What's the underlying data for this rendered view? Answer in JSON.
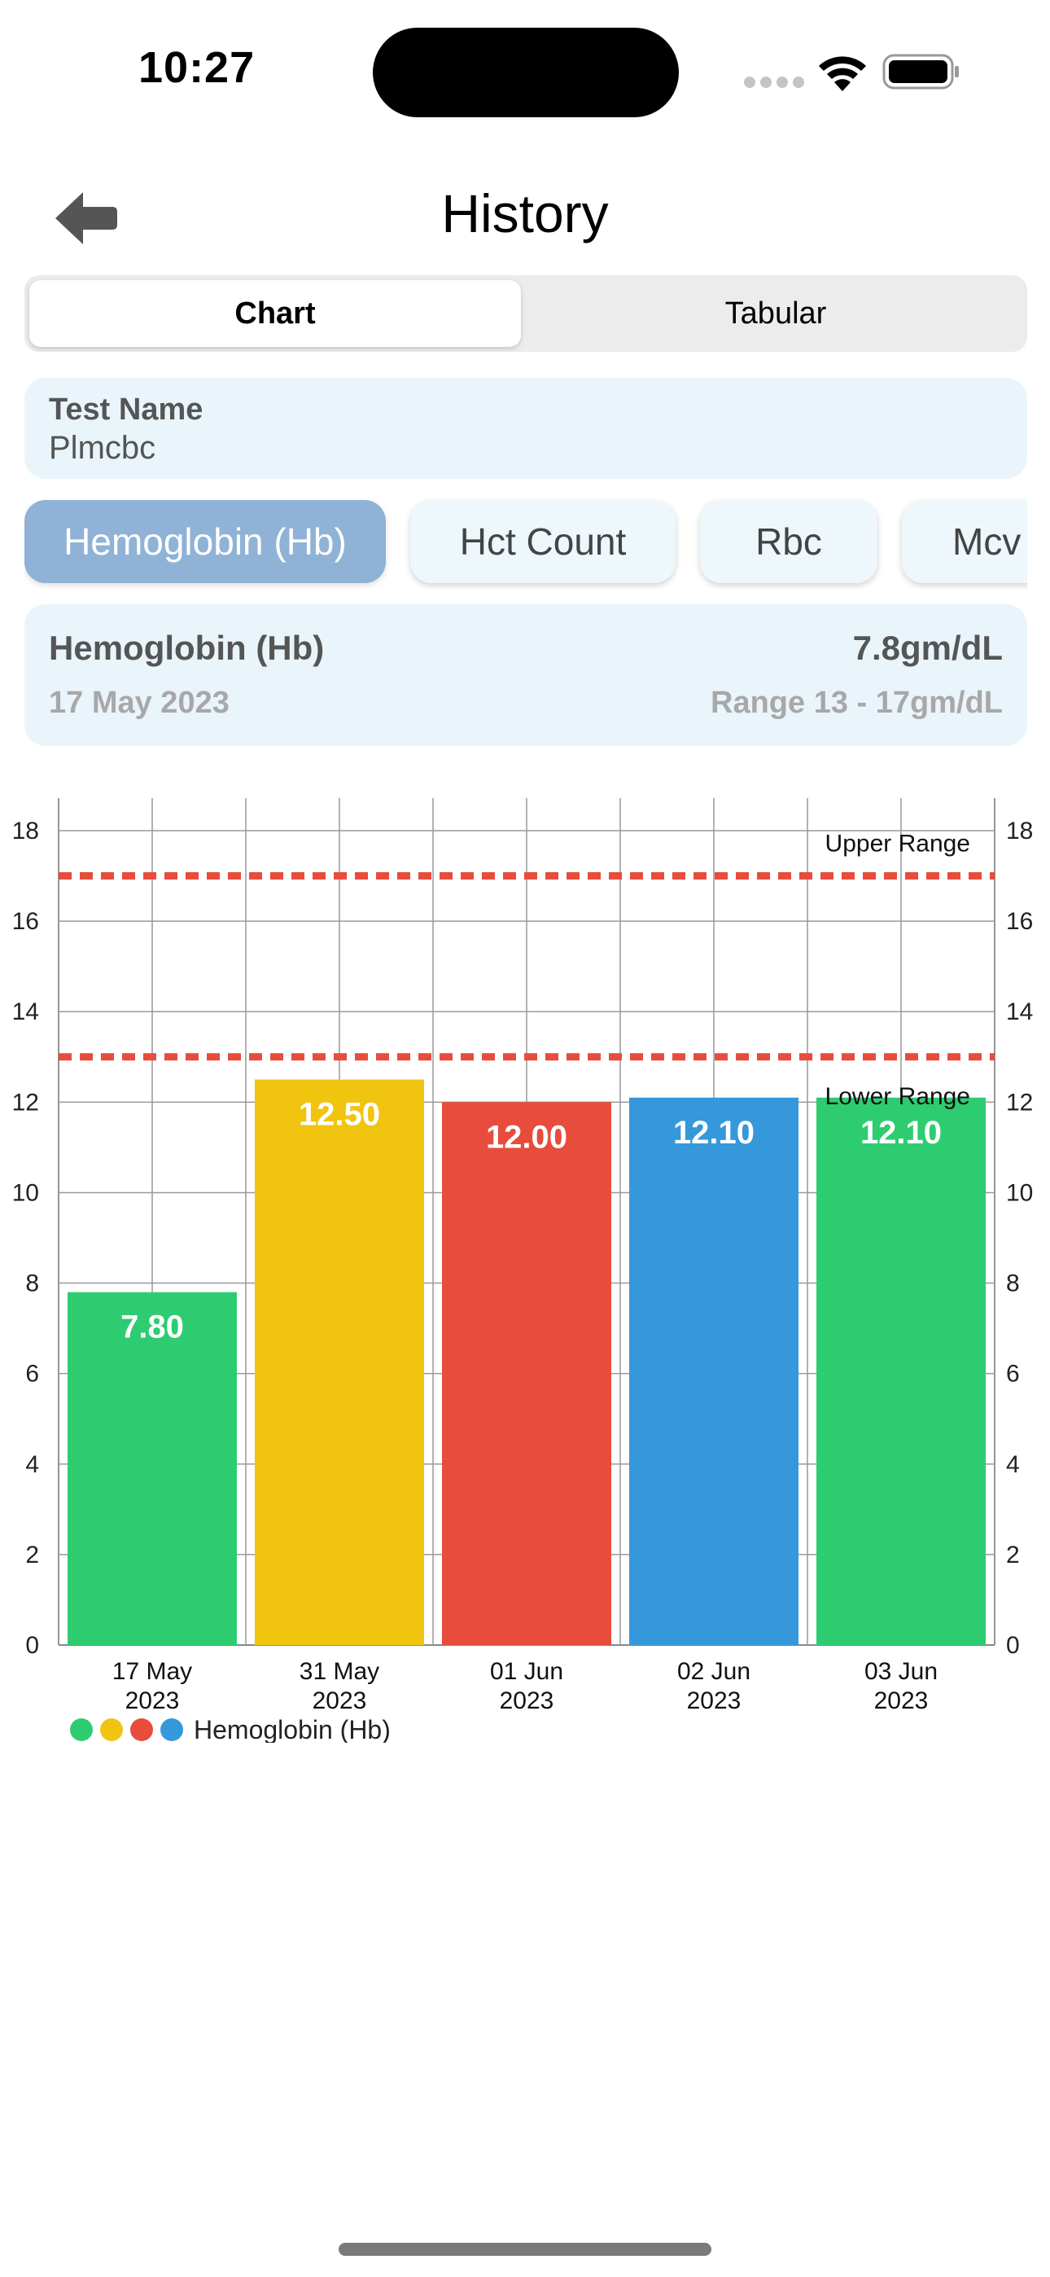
{
  "status_bar": {
    "time": "10:27",
    "wifi_icon": "wifi-icon",
    "battery_icon": "battery-icon"
  },
  "nav": {
    "back_icon": "back-arrow-icon",
    "title": "History"
  },
  "segmented": {
    "tabs": [
      {
        "label": "Chart",
        "selected": true
      },
      {
        "label": "Tabular",
        "selected": false
      }
    ]
  },
  "test": {
    "label": "Test Name",
    "value": "Plmcbc"
  },
  "parameters": {
    "items": [
      {
        "label": "Hemoglobin (Hb)",
        "selected": true
      },
      {
        "label": "Hct Count",
        "selected": false
      },
      {
        "label": "Rbc",
        "selected": false
      },
      {
        "label": "Mcv",
        "selected": false
      }
    ],
    "active_color": "#8fb2d6",
    "inactive_color": "#eef7fb"
  },
  "summary": {
    "name": "Hemoglobin (Hb)",
    "value": "7.8gm/dL",
    "date": "17 May 2023",
    "range": "Range 13 - 17gm/dL"
  },
  "chart_data": {
    "type": "bar",
    "categories": [
      [
        "17 May",
        "2023"
      ],
      [
        "31 May",
        "2023"
      ],
      [
        "01 Jun",
        "2023"
      ],
      [
        "02 Jun",
        "2023"
      ],
      [
        "03 Jun",
        "2023"
      ]
    ],
    "series": [
      {
        "name": "Hemoglobin (Hb)",
        "values": [
          7.8,
          12.5,
          12.0,
          12.1,
          12.1
        ]
      }
    ],
    "data_labels": [
      "7.80",
      "12.50",
      "12.00",
      "12.10",
      "12.10"
    ],
    "bar_colors": [
      "#2ecc71",
      "#f1c40f",
      "#e74c3c",
      "#3498db",
      "#2ecc71"
    ],
    "legend_colors": [
      "#2ecc71",
      "#f1c40f",
      "#e74c3c",
      "#3498db"
    ],
    "ylim": [
      0,
      18
    ],
    "yticks": [
      0,
      2,
      4,
      6,
      8,
      10,
      12,
      14,
      16,
      18
    ],
    "reference_lines": [
      {
        "label": "Upper Range",
        "value": 17,
        "color": "#e74c3c"
      },
      {
        "label": "Lower Range",
        "value": 13,
        "color": "#e74c3c"
      }
    ],
    "grid": true,
    "dual_y_axis": true,
    "legend_position": "bottom-left"
  }
}
